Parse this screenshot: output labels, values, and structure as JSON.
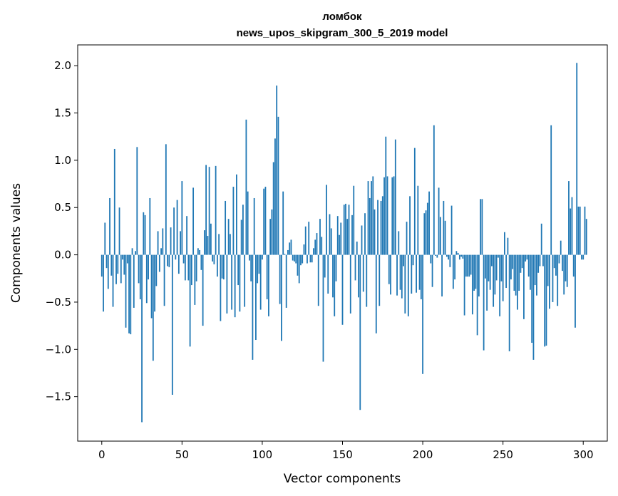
{
  "chart_data": {
    "type": "bar",
    "title": "ломбок",
    "subtitle": "news_upos_skipgram_300_5_2019 model",
    "xlabel": "Vector components",
    "ylabel": "Components values",
    "xlim": [
      -15,
      315
    ],
    "ylim": [
      -1.97,
      2.22
    ],
    "xticks": [
      0,
      50,
      100,
      150,
      200,
      250,
      300
    ],
    "xtick_labels": [
      "0",
      "50",
      "100",
      "150",
      "200",
      "250",
      "300"
    ],
    "yticks": [
      -1.5,
      -1.0,
      -0.5,
      0.0,
      0.5,
      1.0,
      1.5,
      2.0
    ],
    "ytick_labels": [
      "−1.5",
      "−1.0",
      "−0.5",
      "0.0",
      "0.5",
      "1.0",
      "1.5",
      "2.0"
    ],
    "values": [
      -0.23,
      -0.6,
      0.34,
      -0.14,
      -0.36,
      0.6,
      -0.22,
      -0.55,
      1.12,
      -0.31,
      -0.2,
      0.5,
      -0.3,
      -0.05,
      -0.21,
      -0.77,
      -0.09,
      -0.83,
      -0.84,
      0.07,
      -0.56,
      0.04,
      1.14,
      -0.3,
      -0.47,
      -1.77,
      0.45,
      0.42,
      -0.51,
      -0.26,
      0.6,
      -0.67,
      -1.12,
      -0.6,
      -0.33,
      0.25,
      -0.18,
      0.07,
      0.28,
      -0.54,
      1.17,
      -0.12,
      -0.13,
      0.29,
      -1.48,
      0.5,
      -0.05,
      0.58,
      -0.2,
      0.25,
      0.78,
      -0.09,
      -0.27,
      0.41,
      -0.27,
      -0.97,
      -0.32,
      0.71,
      -0.53,
      -0.28,
      0.07,
      0.05,
      -0.16,
      -0.75,
      0.26,
      0.95,
      0.2,
      0.93,
      0.33,
      -0.07,
      -0.1,
      0.94,
      -0.23,
      0.22,
      -0.7,
      -0.25,
      -0.26,
      0.57,
      -0.62,
      0.38,
      0.22,
      -0.58,
      0.72,
      -0.66,
      0.85,
      -0.32,
      -0.6,
      0.37,
      0.53,
      -0.55,
      1.43,
      0.67,
      -0.06,
      -0.28,
      -1.11,
      0.6,
      -0.9,
      -0.3,
      -0.2,
      -0.58,
      -0.05,
      0.7,
      0.72,
      -0.47,
      -0.65,
      0.38,
      0.48,
      0.98,
      1.23,
      1.79,
      1.46,
      -0.52,
      -0.91,
      0.67,
      0.01,
      -0.56,
      0.05,
      0.13,
      0.16,
      -0.06,
      -0.07,
      -0.09,
      -0.22,
      -0.3,
      -0.11,
      -0.09,
      0.11,
      0.3,
      -0.09,
      0.35,
      -0.08,
      -0.08,
      0.07,
      0.16,
      0.23,
      -0.54,
      0.38,
      0.19,
      -1.13,
      -0.24,
      0.74,
      -0.41,
      0.43,
      0.28,
      -0.45,
      -0.65,
      -0.28,
      0.41,
      0.21,
      0.34,
      -0.74,
      0.53,
      0.54,
      0.38,
      0.53,
      -0.62,
      0.42,
      0.73,
      -0.27,
      0.14,
      -0.45,
      -1.64,
      0.31,
      -0.39,
      0.44,
      -0.55,
      0.78,
      0.6,
      0.78,
      0.83,
      0.48,
      -0.83,
      0.58,
      -0.54,
      0.57,
      0.62,
      0.82,
      1.25,
      0.83,
      -0.31,
      -0.42,
      0.82,
      0.83,
      1.22,
      -0.43,
      0.25,
      -0.37,
      -0.46,
      -0.12,
      -0.62,
      0.35,
      -0.65,
      0.62,
      -0.41,
      -0.11,
      1.13,
      -0.4,
      0.73,
      -0.37,
      -0.47,
      -1.26,
      0.44,
      0.47,
      0.55,
      0.67,
      -0.09,
      -0.34,
      1.37,
      -0.01,
      -0.03,
      0.71,
      0.4,
      -0.44,
      0.57,
      0.36,
      -0.02,
      -0.05,
      -0.13,
      0.52,
      -0.36,
      -0.26,
      0.04,
      0.02,
      -0.05,
      -0.02,
      -0.04,
      -0.64,
      -0.23,
      -0.23,
      -0.23,
      -0.21,
      -0.63,
      -0.38,
      -0.36,
      -0.85,
      -0.44,
      0.59,
      0.59,
      -1.01,
      -0.25,
      -0.59,
      -0.28,
      -0.37,
      -0.12,
      -0.55,
      -0.42,
      -0.27,
      -0.03,
      -0.65,
      -0.28,
      -0.49,
      0.24,
      -0.35,
      0.18,
      -1.02,
      -0.26,
      -0.15,
      -0.38,
      -0.43,
      -0.58,
      -0.38,
      -0.19,
      -0.14,
      -0.68,
      -0.07,
      -0.05,
      -0.23,
      -0.37,
      -0.93,
      -1.11,
      -0.32,
      -0.43,
      -0.19,
      -0.12,
      0.33,
      -0.12,
      -0.97,
      -0.96,
      -0.33,
      -0.57,
      1.37,
      -0.5,
      -0.14,
      -0.22,
      -0.54,
      -0.09,
      0.15,
      -0.17,
      -0.42,
      -0.28,
      -0.34,
      0.78,
      0.49,
      0.61,
      -0.23,
      -0.77,
      2.03,
      0.51,
      0.51,
      -0.05,
      -0.05,
      0.51,
      0.38
    ]
  }
}
